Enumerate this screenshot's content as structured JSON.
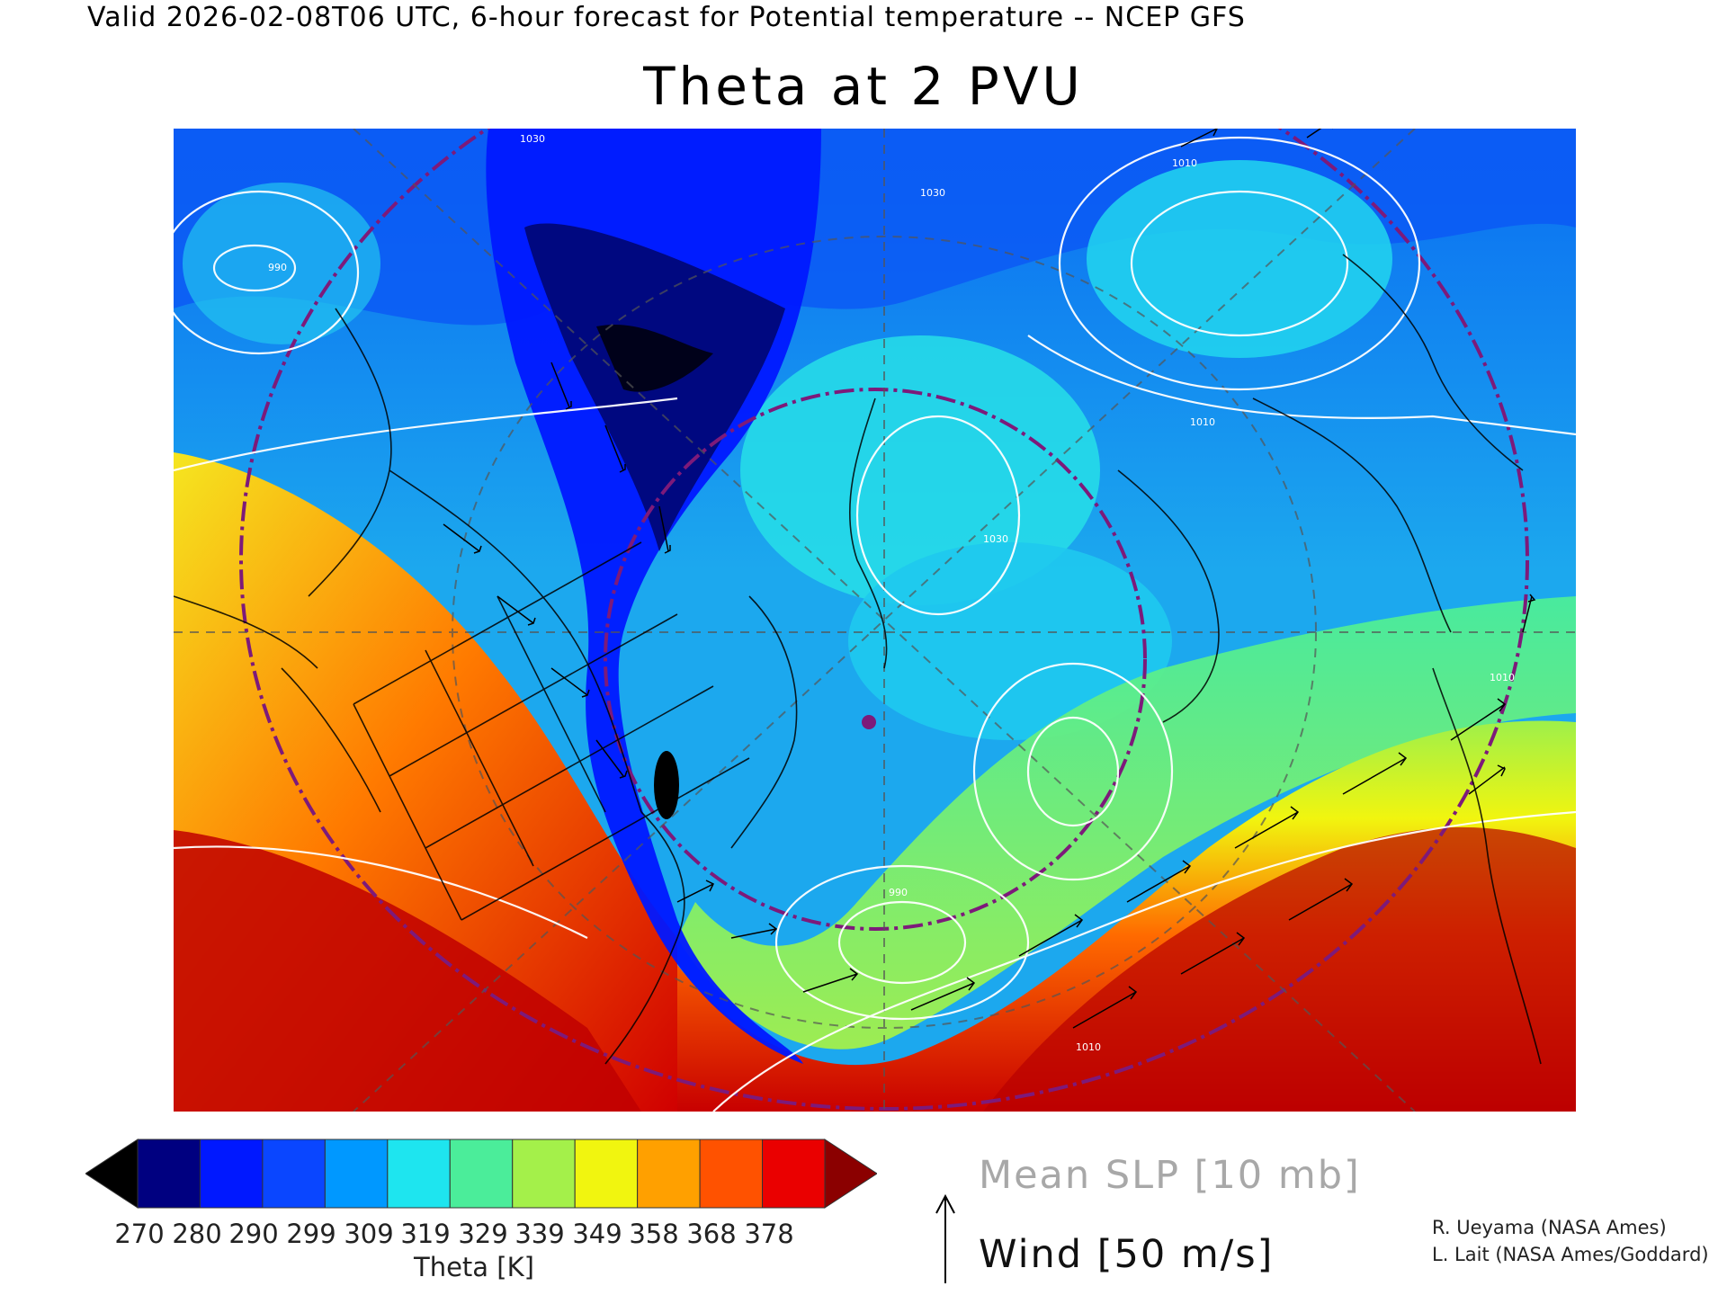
{
  "header": {
    "text": "Valid 2026-02-08T06 UTC, 6-hour forecast for Potential temperature -- NCEP GFS"
  },
  "title": "Theta at 2 PVU",
  "map": {
    "isobar_labels": [
      "1030",
      "1010",
      "1030",
      "990",
      "1010",
      "1030",
      "990",
      "1010",
      "1010"
    ],
    "colors": {
      "low": "#000000",
      "mid_low": "#0a46ff",
      "mid": "#33e0e8",
      "high": "#ff1500",
      "isobar": "#ffffff",
      "border": "#000000",
      "circle": "#7d1a7a"
    }
  },
  "colorbar": {
    "colors": [
      "#000000",
      "#000080",
      "#0018ff",
      "#0a46ff",
      "#0098ff",
      "#1ee5ef",
      "#4bed9a",
      "#a4f04a",
      "#f1f50f",
      "#ffa000",
      "#ff5200",
      "#ea0000",
      "#8b0000"
    ],
    "ticks": [
      "270",
      "280",
      "290",
      "299",
      "309",
      "319",
      "329",
      "339",
      "349",
      "358",
      "368",
      "378"
    ],
    "label": "Theta [K]"
  },
  "legend": {
    "slp_label": "Mean SLP [10 mb]",
    "wind_label": "Wind [50 m/s]"
  },
  "credits": [
    "R. Ueyama (NASA Ames)",
    "L. Lait (NASA Ames/Goddard)"
  ]
}
